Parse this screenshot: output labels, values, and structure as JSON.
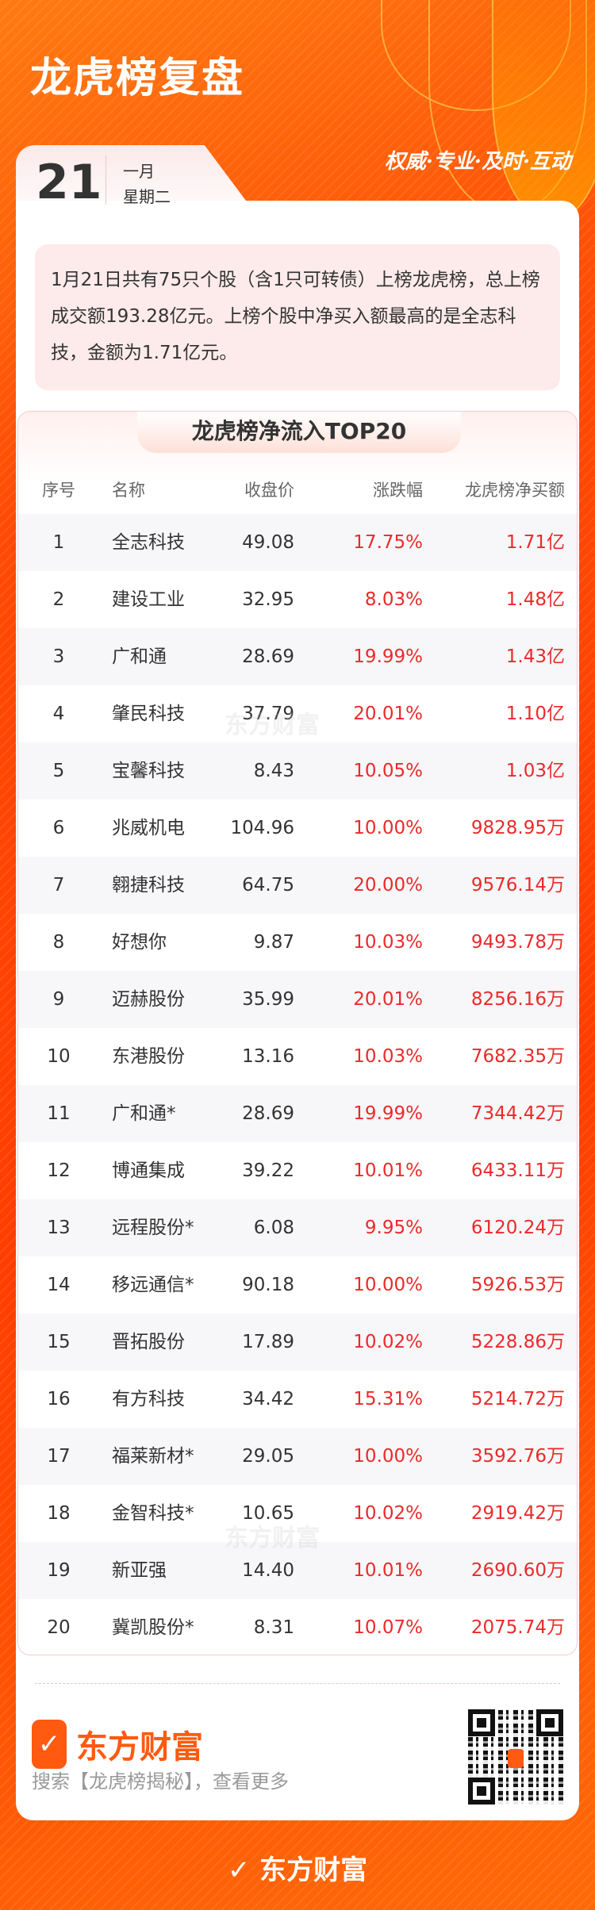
{
  "header": {
    "title": "龙虎榜复盘",
    "slogan": "权威·专业·及时·互动",
    "day": "21",
    "month": "一月",
    "weekday": "星期二"
  },
  "summary": "1月21日共有75只个股（含1只可转债）上榜龙虎榜，总上榜成交额193.28亿元。上榜个股中净买入额最高的是全志科技，金额为1.71亿元。",
  "table": {
    "title": "龙虎榜净流入TOP20",
    "columns": [
      "序号",
      "名称",
      "收盘价",
      "涨跌幅",
      "龙虎榜净买额"
    ],
    "rows": [
      [
        "1",
        "全志科技",
        "49.08",
        "17.75%",
        "1.71亿"
      ],
      [
        "2",
        "建设工业",
        "32.95",
        "8.03%",
        "1.48亿"
      ],
      [
        "3",
        "广和通",
        "28.69",
        "19.99%",
        "1.43亿"
      ],
      [
        "4",
        "肇民科技",
        "37.79",
        "20.01%",
        "1.10亿"
      ],
      [
        "5",
        "宝馨科技",
        "8.43",
        "10.05%",
        "1.03亿"
      ],
      [
        "6",
        "兆威机电",
        "104.96",
        "10.00%",
        "9828.95万"
      ],
      [
        "7",
        "翱捷科技",
        "64.75",
        "20.00%",
        "9576.14万"
      ],
      [
        "8",
        "好想你",
        "9.87",
        "10.03%",
        "9493.78万"
      ],
      [
        "9",
        "迈赫股份",
        "35.99",
        "20.01%",
        "8256.16万"
      ],
      [
        "10",
        "东港股份",
        "13.16",
        "10.03%",
        "7682.35万"
      ],
      [
        "11",
        "广和通*",
        "28.69",
        "19.99%",
        "7344.42万"
      ],
      [
        "12",
        "博通集成",
        "39.22",
        "10.01%",
        "6433.11万"
      ],
      [
        "13",
        "远程股份*",
        "6.08",
        "9.95%",
        "6120.24万"
      ],
      [
        "14",
        "移远通信*",
        "90.18",
        "10.00%",
        "5926.53万"
      ],
      [
        "15",
        "晋拓股份",
        "17.89",
        "10.02%",
        "5228.86万"
      ],
      [
        "16",
        "有方科技",
        "34.42",
        "15.31%",
        "5214.72万"
      ],
      [
        "17",
        "福莱新材*",
        "29.05",
        "10.00%",
        "3592.76万"
      ],
      [
        "18",
        "金智科技*",
        "10.65",
        "10.02%",
        "2919.42万"
      ],
      [
        "19",
        "新亚强",
        "14.40",
        "10.01%",
        "2690.60万"
      ],
      [
        "20",
        "冀凯股份*",
        "8.31",
        "10.07%",
        "2075.74万"
      ]
    ]
  },
  "footer": {
    "brand": "东方财富",
    "search_hint": "搜索【龙虎榜揭秘】，查看更多",
    "bottom_brand": "东方财富"
  },
  "colors": {
    "accent": "#ff4a05",
    "up": "#ea2a2a",
    "brand": "#ff5a10"
  },
  "icons": {
    "logo": "eastmoney-logo-icon",
    "qr": "qr-code"
  }
}
